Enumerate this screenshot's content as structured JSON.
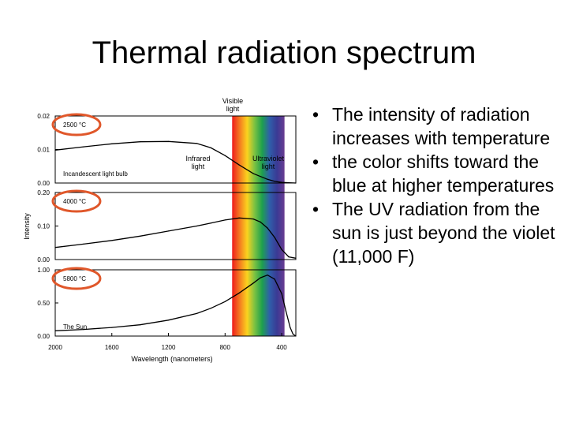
{
  "slide": {
    "title": "Thermal radiation spectrum",
    "bullets": [
      "The intensity of radiation increases with temperature",
      "the color shifts toward the blue at higher temperatures",
      "The UV radiation from the sun is just beyond the violet (11,000 F)"
    ]
  },
  "colors": {
    "curve": "#000000",
    "highlight_circle": "#e0572a",
    "spectrum": [
      "#ee1c1c",
      "#f47a20",
      "#fbd21e",
      "#7cc242",
      "#1ea14d",
      "#2f5faa",
      "#3a3a94",
      "#6a3c92"
    ]
  },
  "chart_data": {
    "type": "line",
    "xlabel": "Wavelength (nanometers)",
    "ylabel": "Intensity",
    "x_ticks": [
      "2000",
      "1600",
      "1200",
      "800",
      "400"
    ],
    "x_range": [
      2000,
      300
    ],
    "x_reversed": true,
    "band_labels": {
      "visible": "Visible light",
      "infrared": "Infrared light",
      "ultraviolet": "Ultraviolet light"
    },
    "visible_band": [
      750,
      380
    ],
    "panels": [
      {
        "temperature": "2500 °C",
        "source": "Incandescent light bulb",
        "ylim": [
          0,
          0.02
        ],
        "y_ticks": [
          "0.00",
          "0.01",
          "0.02"
        ],
        "x": [
          2000,
          1800,
          1600,
          1400,
          1200,
          1000,
          900,
          800,
          700,
          600,
          500,
          450,
          400,
          350,
          300
        ],
        "values": [
          0.0098,
          0.0108,
          0.0117,
          0.0123,
          0.0124,
          0.0118,
          0.0105,
          0.0082,
          0.0054,
          0.0028,
          0.0011,
          0.0005,
          0.0002,
          0.0001,
          0.0
        ]
      },
      {
        "temperature": "4000 °C",
        "source": "",
        "ylim": [
          0,
          0.2
        ],
        "y_ticks": [
          "0.00",
          "0.10",
          "0.20"
        ],
        "x": [
          2000,
          1800,
          1600,
          1400,
          1200,
          1000,
          900,
          800,
          700,
          600,
          550,
          500,
          450,
          400,
          350,
          300
        ],
        "values": [
          0.036,
          0.046,
          0.057,
          0.07,
          0.085,
          0.1,
          0.109,
          0.118,
          0.124,
          0.121,
          0.112,
          0.094,
          0.066,
          0.03,
          0.008,
          0.004
        ]
      },
      {
        "temperature": "5800 °C",
        "source": "The Sun",
        "ylim": [
          0,
          1.0
        ],
        "y_ticks": [
          "0.00",
          "0.50",
          "1.00"
        ],
        "x": [
          2000,
          1800,
          1600,
          1400,
          1200,
          1000,
          900,
          800,
          700,
          600,
          550,
          500,
          450,
          400,
          370,
          340,
          320,
          300
        ],
        "values": [
          0.08,
          0.1,
          0.13,
          0.17,
          0.24,
          0.34,
          0.42,
          0.52,
          0.65,
          0.8,
          0.88,
          0.92,
          0.86,
          0.64,
          0.38,
          0.13,
          0.03,
          0.0
        ]
      }
    ]
  }
}
